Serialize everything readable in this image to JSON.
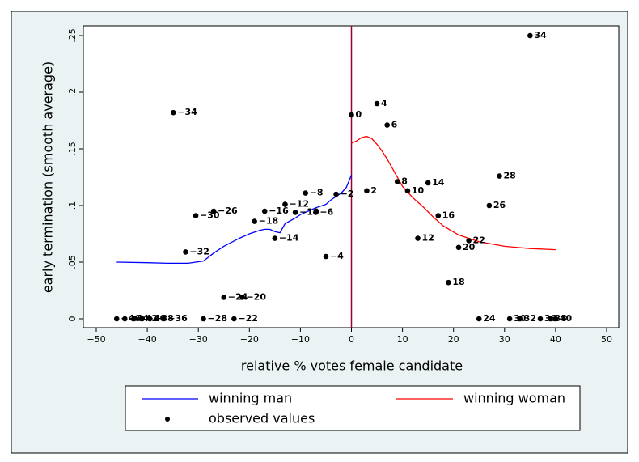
{
  "chart_data": {
    "type": "line",
    "xlabel": "relative % votes female candidate",
    "ylabel": "early termination (smooth average)",
    "xlim": [
      -50,
      50
    ],
    "ylim": [
      0,
      0.25
    ],
    "xticks": [
      {
        "value": -50,
        "label": "−50"
      },
      {
        "value": -40,
        "label": "−40"
      },
      {
        "value": -30,
        "label": "−30"
      },
      {
        "value": -20,
        "label": "−20"
      },
      {
        "value": -10,
        "label": "−10"
      },
      0,
      10,
      20,
      30,
      40,
      50
    ],
    "yticks": [
      0,
      {
        "value": 0.05,
        "label": ".05"
      },
      {
        "value": 0.1,
        "label": ".1"
      },
      {
        "value": 0.15,
        "label": ".15"
      },
      {
        "value": 0.2,
        "label": ".2"
      },
      {
        "value": 0.25,
        "label": ".25"
      }
    ],
    "xline": 0,
    "xline_color": "#990033",
    "legend": "bottom",
    "series": [
      {
        "name": "winning man",
        "color": "#0000ff",
        "x": [
          -46,
          -40,
          -36,
          -32,
          -29,
          -27,
          -25,
          -22,
          -20,
          -18,
          -17,
          -16,
          -15,
          -14,
          -13,
          -11,
          -10,
          -8,
          -7,
          -5,
          -4,
          -2,
          -1,
          0
        ],
        "values": [
          0.05,
          0.0495,
          0.049,
          0.049,
          0.051,
          0.058,
          0.064,
          0.071,
          0.075,
          0.078,
          0.079,
          0.079,
          0.077,
          0.076,
          0.084,
          0.089,
          0.092,
          0.096,
          0.098,
          0.101,
          0.105,
          0.111,
          0.116,
          0.127
        ]
      },
      {
        "name": "winning woman",
        "color": "#ff0000",
        "x": [
          0,
          1,
          2,
          3,
          4,
          5,
          6,
          7,
          8,
          10,
          12,
          14,
          16,
          18,
          21,
          25,
          30,
          35,
          40
        ],
        "values": [
          0.155,
          0.157,
          0.16,
          0.161,
          0.159,
          0.154,
          0.148,
          0.141,
          0.133,
          0.117,
          0.107,
          0.099,
          0.09,
          0.082,
          0.074,
          0.068,
          0.064,
          0.062,
          0.061
        ]
      },
      {
        "name": "observed values",
        "color": "#000000",
        "type": "scatter",
        "x": [
          -46,
          -44.4,
          -42.6,
          -41,
          -39.5,
          -36.8,
          -34.9,
          -32.5,
          -30.5,
          -29,
          -27,
          -25,
          -21.4,
          -23,
          -19,
          -17,
          -15,
          -13,
          -11,
          -9,
          -7,
          -5,
          -3,
          0,
          3,
          5,
          7,
          9,
          11,
          13,
          15,
          17,
          19,
          21,
          23,
          25,
          27,
          29,
          31,
          33,
          35,
          37,
          39,
          40
        ],
        "values": [
          0,
          0,
          0,
          0,
          0,
          0,
          0.182,
          0.059,
          0.091,
          0,
          0.095,
          0.019,
          0.019,
          0,
          0.086,
          0.095,
          0.071,
          0.101,
          0.094,
          0.111,
          0.094,
          0.055,
          0.11,
          0.18,
          0.113,
          0.19,
          0.171,
          0.121,
          0.113,
          0.071,
          0.12,
          0.091,
          0.032,
          0.063,
          0.069,
          0,
          0.1,
          0.126,
          0,
          0,
          0.25,
          0,
          0,
          0
        ],
        "marker_labels": [
          "−46",
          "−44",
          "−42",
          "−40",
          "−38",
          "−36",
          "−34",
          "−32",
          "−30",
          "−28",
          "−26",
          "−24",
          "−20",
          "−22",
          "−18",
          "−16",
          "−14",
          "−12",
          "−10",
          "−8",
          "−6",
          "−4",
          "−2",
          "0",
          "2",
          "4",
          "6",
          "8",
          "10",
          "12",
          "14",
          "16",
          "18",
          "20",
          "22",
          "24",
          "26",
          "28",
          "30",
          "32",
          "34",
          "36",
          "38",
          "40"
        ]
      }
    ]
  }
}
